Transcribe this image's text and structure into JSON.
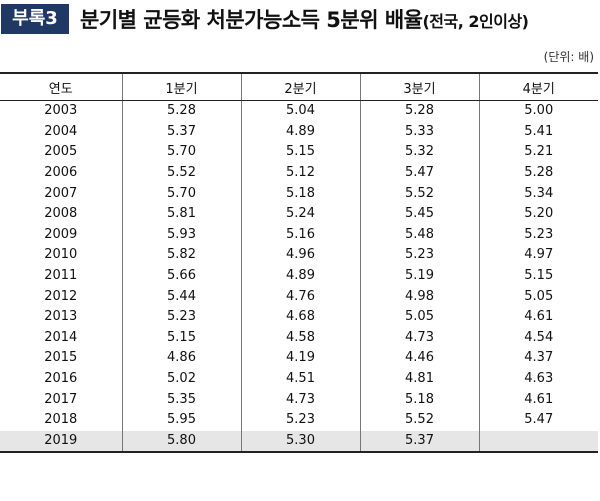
{
  "header": {
    "badge": "부록3",
    "title": "분기별 균등화 처분가능소득 5분위 배율",
    "subtitle": "(전국, 2인이상)"
  },
  "unit_label": "(단위: 배)",
  "table": {
    "columns": [
      "연도",
      "1분기",
      "2분기",
      "3분기",
      "4분기"
    ],
    "rows": [
      [
        "2003",
        "5.28",
        "5.04",
        "5.28",
        "5.00"
      ],
      [
        "2004",
        "5.37",
        "4.89",
        "5.33",
        "5.41"
      ],
      [
        "2005",
        "5.70",
        "5.15",
        "5.32",
        "5.21"
      ],
      [
        "2006",
        "5.52",
        "5.12",
        "5.47",
        "5.28"
      ],
      [
        "2007",
        "5.70",
        "5.18",
        "5.52",
        "5.34"
      ],
      [
        "2008",
        "5.81",
        "5.24",
        "5.45",
        "5.20"
      ],
      [
        "2009",
        "5.93",
        "5.16",
        "5.48",
        "5.23"
      ],
      [
        "2010",
        "5.82",
        "4.96",
        "5.23",
        "4.97"
      ],
      [
        "2011",
        "5.66",
        "4.89",
        "5.19",
        "5.15"
      ],
      [
        "2012",
        "5.44",
        "4.76",
        "4.98",
        "5.05"
      ],
      [
        "2013",
        "5.23",
        "4.68",
        "5.05",
        "4.61"
      ],
      [
        "2014",
        "5.15",
        "4.58",
        "4.73",
        "4.54"
      ],
      [
        "2015",
        "4.86",
        "4.19",
        "4.46",
        "4.37"
      ],
      [
        "2016",
        "5.02",
        "4.51",
        "4.81",
        "4.63"
      ],
      [
        "2017",
        "5.35",
        "4.73",
        "5.18",
        "4.61"
      ],
      [
        "2018",
        "5.95",
        "5.23",
        "5.52",
        "5.47"
      ],
      [
        "2019",
        "5.80",
        "5.30",
        "5.37",
        ""
      ]
    ]
  }
}
